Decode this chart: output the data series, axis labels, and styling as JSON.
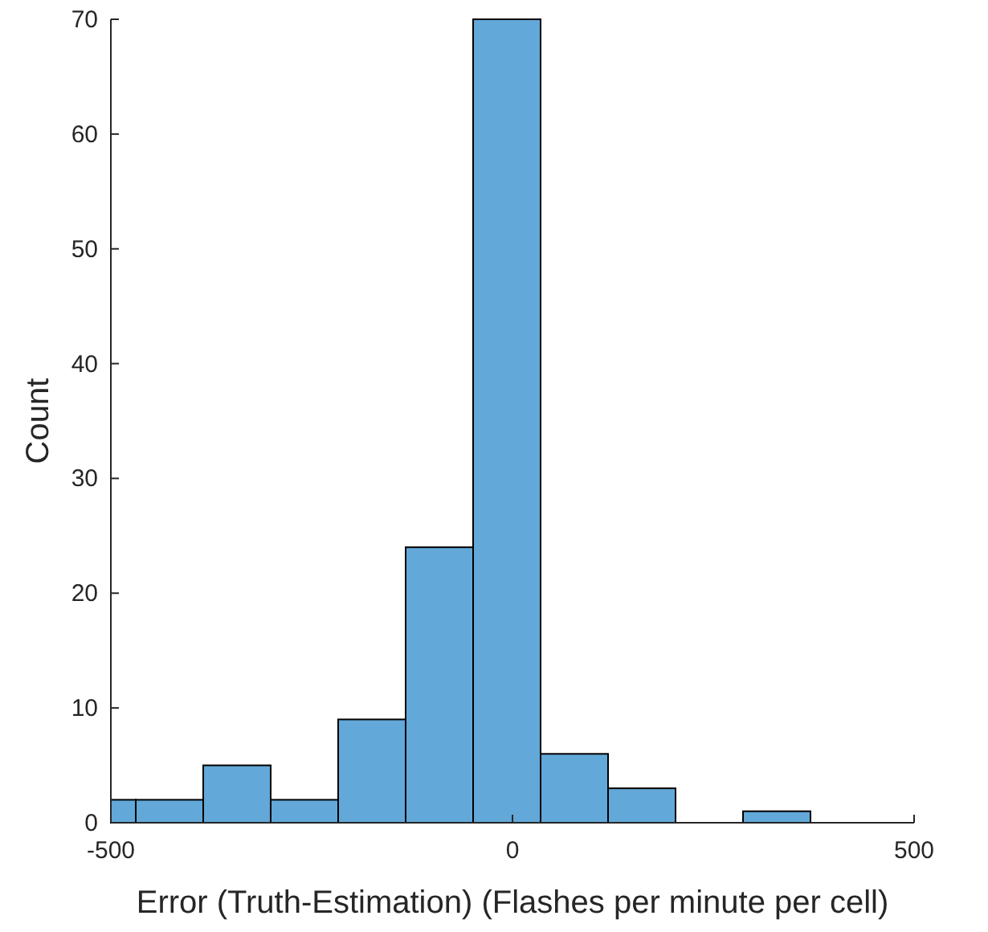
{
  "chart_data": {
    "type": "histogram",
    "xlabel": "Error (Truth-Estimation) (Flashes per minute per cell)",
    "ylabel": "Count",
    "bins": [
      -500,
      -469,
      -385,
      -301,
      -217,
      -133,
      -49,
      35,
      119,
      203,
      287,
      371
    ],
    "values": [
      2,
      2,
      5,
      2,
      9,
      24,
      70,
      6,
      3,
      0,
      1
    ],
    "color": "#62a8d8",
    "xlim": [
      -500,
      500
    ],
    "xticks": [
      -500,
      0,
      500
    ],
    "ylim": [
      0,
      70
    ],
    "yticks": [
      0,
      10,
      20,
      30,
      40,
      50,
      60,
      70
    ],
    "grid": false
  }
}
